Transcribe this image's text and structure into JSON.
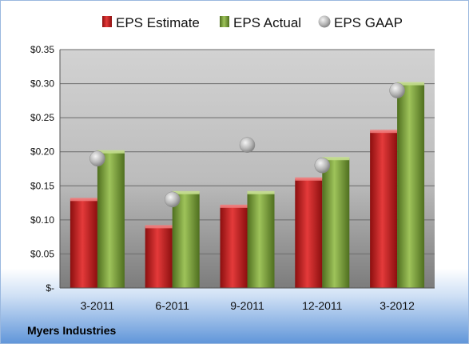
{
  "chart_data": {
    "type": "bar",
    "categories": [
      "3-2011",
      "6-2011",
      "9-2011",
      "12-2011",
      "3-2012"
    ],
    "series": [
      {
        "name": "EPS Estimate",
        "kind": "bar",
        "color": "#cc1f1f",
        "values": [
          0.13,
          0.09,
          0.12,
          0.16,
          0.23
        ]
      },
      {
        "name": "EPS Actual",
        "kind": "bar",
        "color": "#7fa63a",
        "values": [
          0.2,
          0.14,
          0.14,
          0.19,
          0.3
        ]
      },
      {
        "name": "EPS GAAP",
        "kind": "marker",
        "color": "#b0b0b0",
        "values": [
          0.19,
          0.13,
          0.21,
          0.18,
          0.29
        ]
      }
    ],
    "ylim": [
      0,
      0.35
    ],
    "yticks": [
      0,
      0.05,
      0.1,
      0.15,
      0.2,
      0.25,
      0.3,
      0.35
    ],
    "ytick_labels": [
      "$-",
      "$0.05",
      "$0.10",
      "$0.15",
      "$0.20",
      "$0.25",
      "$0.30",
      "$0.35"
    ],
    "grid": true,
    "legend": "top"
  },
  "footer": {
    "company": "Myers Industries"
  },
  "colors": {
    "background_top": "#ffffff",
    "background_bottom": "#5f95d9"
  }
}
